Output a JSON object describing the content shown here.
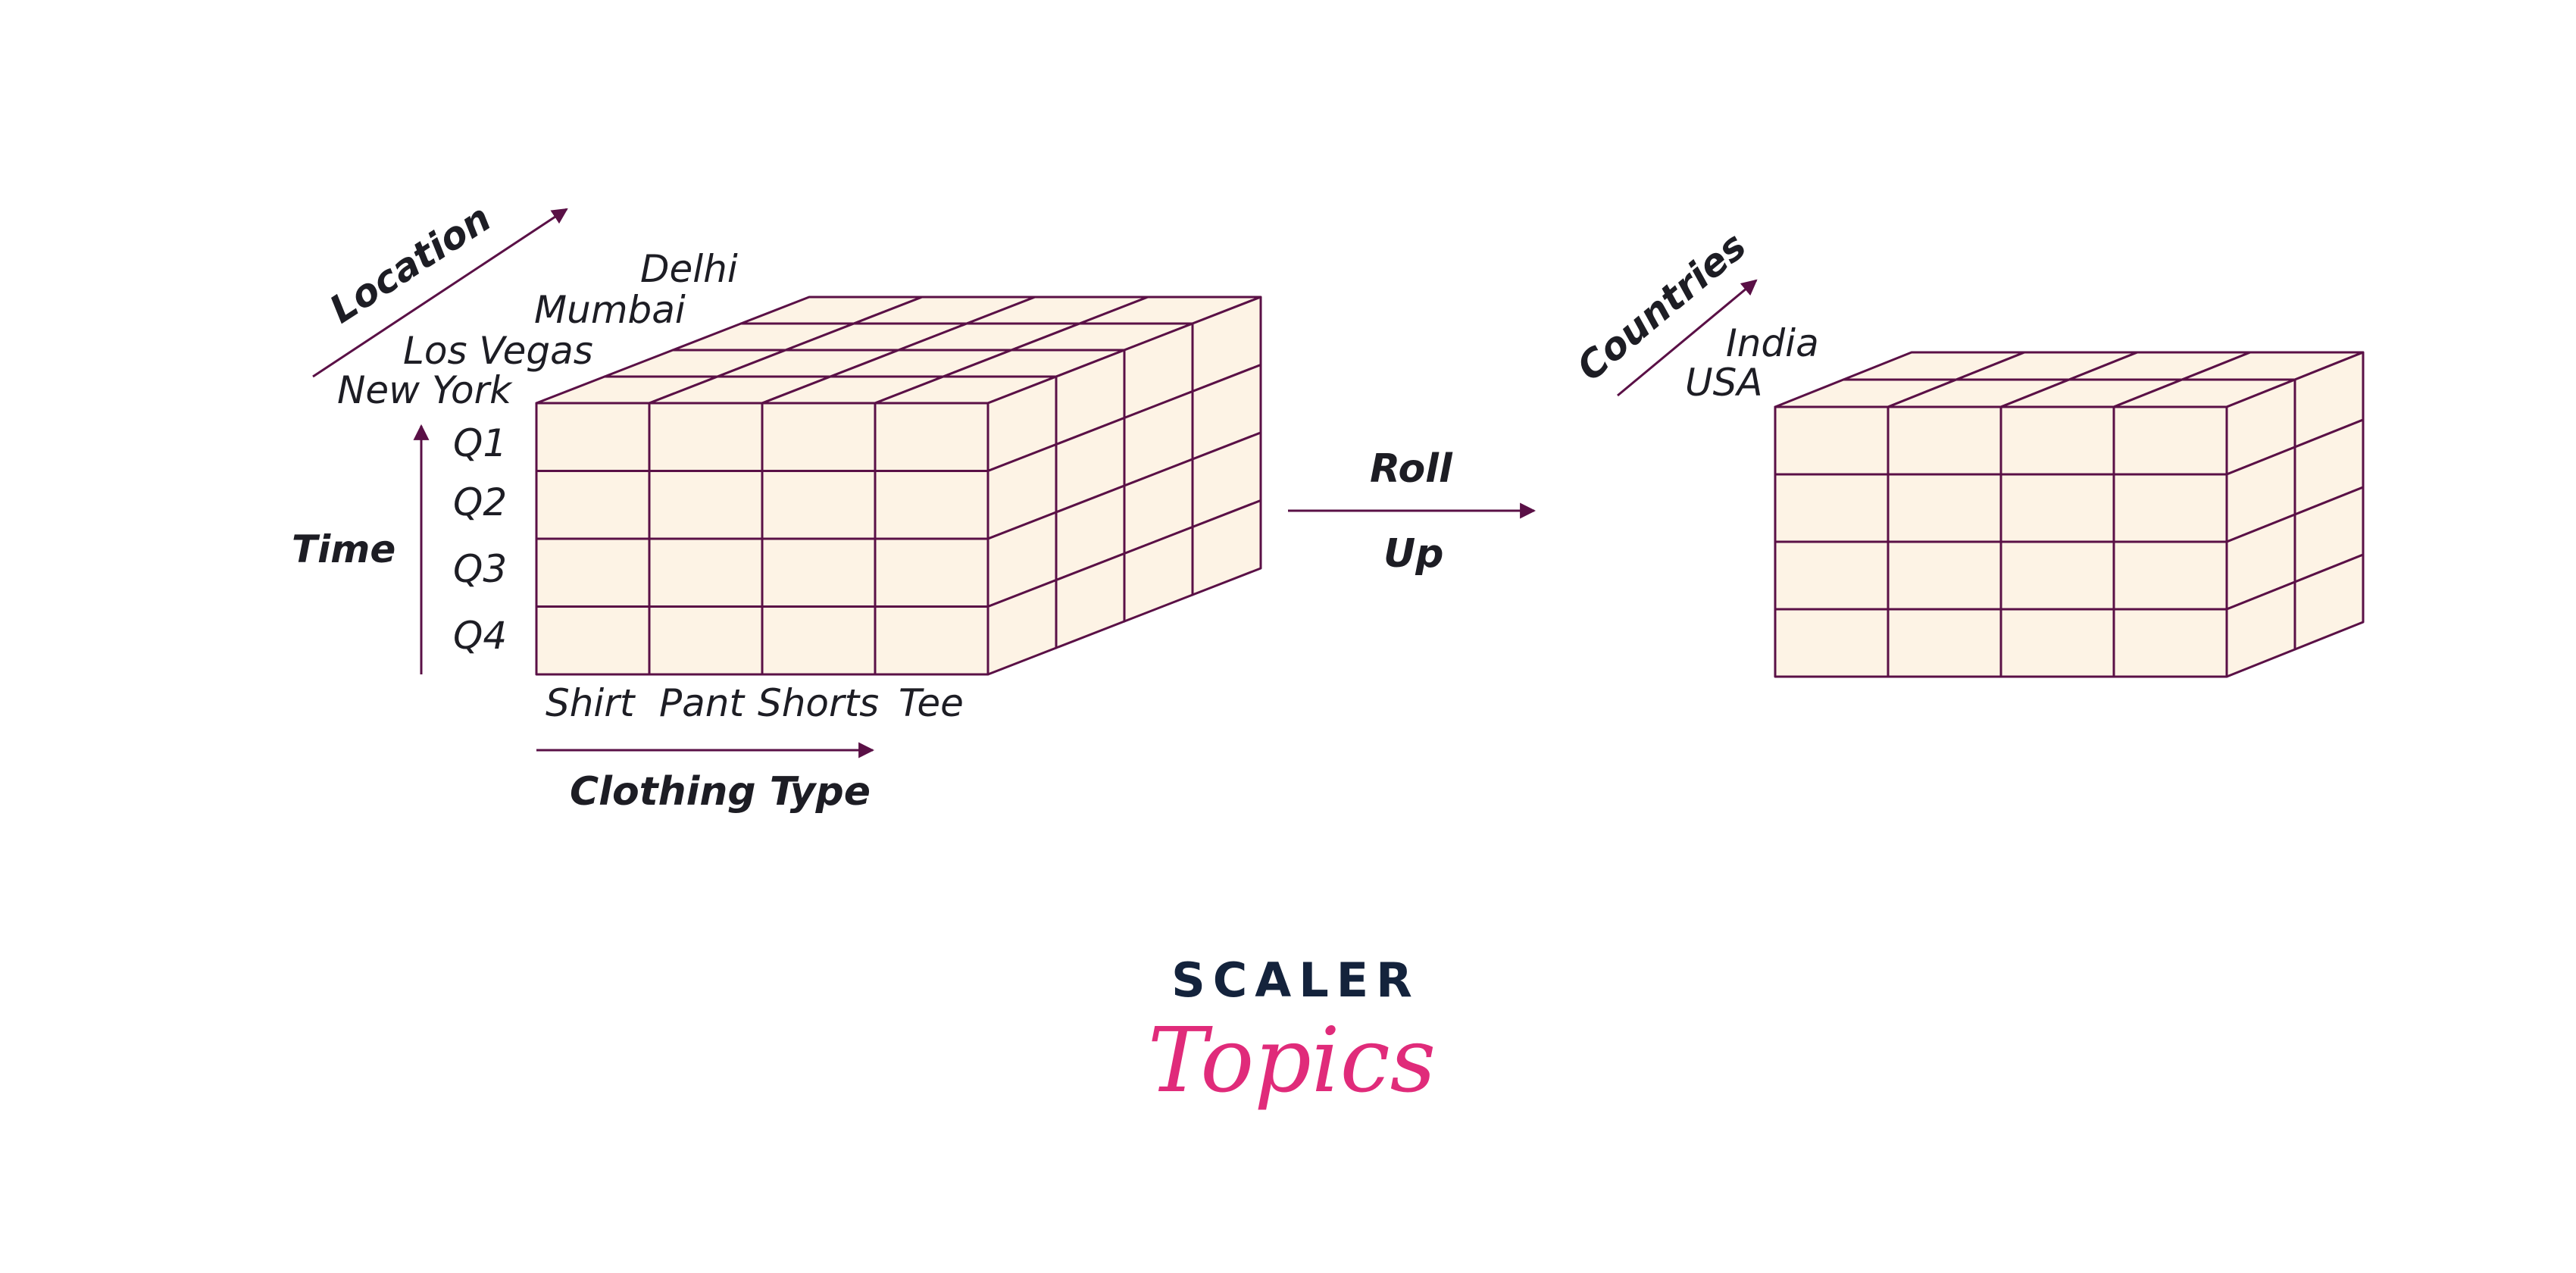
{
  "colors": {
    "cube_fill": "#fdf3e5",
    "cube_stroke": "#5a1046",
    "arrow": "#5a1046",
    "text": "#1d1d24",
    "brand_dark": "#14233c",
    "brand_pink": "#e02b7a"
  },
  "left_cube": {
    "axis_location_label": "Location",
    "axis_time_label": "Time",
    "axis_clothing_label": "Clothing Type",
    "locations": [
      "Delhi",
      "Mumbai",
      "Los Vegas",
      "New York"
    ],
    "quarters": [
      "Q1",
      "Q2",
      "Q3",
      "Q4"
    ],
    "clothing_types": [
      "Shirt",
      "Pant",
      "Shorts",
      "Tee"
    ]
  },
  "operation": {
    "line1": "Roll",
    "line2": "Up"
  },
  "right_cube": {
    "axis_label": "Countries",
    "countries": [
      "India",
      "USA"
    ]
  },
  "brand": {
    "top": "SCALER",
    "bottom": "Topics"
  }
}
